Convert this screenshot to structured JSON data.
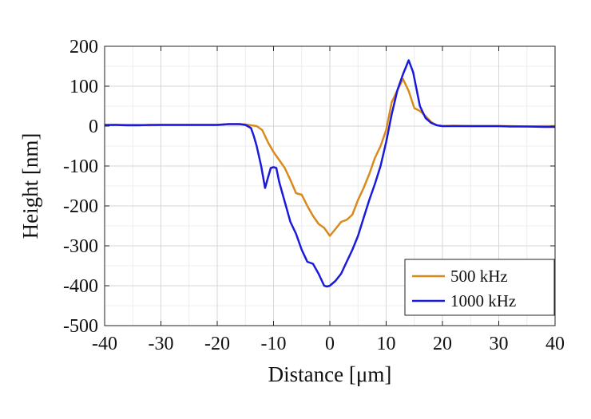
{
  "chart_data": {
    "type": "line",
    "title": "",
    "xlabel": "Distance [μm]",
    "ylabel": "Height [nm]",
    "xlim": [
      -40,
      40
    ],
    "ylim": [
      -500,
      200
    ],
    "xticks": [
      "-40",
      "-30",
      "-20",
      "-10",
      "0",
      "10",
      "20",
      "30",
      "40"
    ],
    "yticks": [
      "200",
      "100",
      "0",
      "-100",
      "-200",
      "-300",
      "-400",
      "-500"
    ],
    "grid": true,
    "minor_grid": true,
    "legend_position": "bottom-right",
    "series": [
      {
        "name": "500 kHz",
        "color": "#d98a1c",
        "x": [
          -40,
          -38,
          -36,
          -34,
          -32,
          -30,
          -28,
          -26,
          -24,
          -22,
          -20,
          -18,
          -17,
          -16,
          -15,
          -14,
          -13,
          -12,
          -11,
          -10,
          -9,
          -8,
          -7,
          -6,
          -5,
          -4,
          -3,
          -2,
          -1,
          0,
          1,
          2,
          3,
          4,
          5,
          6,
          7,
          8,
          9,
          10,
          11,
          12,
          13,
          14,
          15,
          16,
          17,
          18,
          19,
          20,
          22,
          25,
          28,
          30,
          32,
          35,
          38,
          40
        ],
        "y": [
          2,
          3,
          3,
          3,
          2,
          3,
          3,
          3,
          3,
          3,
          3,
          5,
          5,
          5,
          4,
          2,
          0,
          -10,
          -40,
          -65,
          -85,
          -105,
          -135,
          -168,
          -172,
          -200,
          -225,
          -245,
          -255,
          -275,
          -258,
          -240,
          -235,
          -222,
          -185,
          -155,
          -120,
          -80,
          -50,
          -10,
          60,
          90,
          118,
          88,
          45,
          38,
          25,
          10,
          2,
          0,
          1,
          0,
          0,
          0,
          0,
          -1,
          0,
          0
        ]
      },
      {
        "name": "1000 kHz",
        "color": "#1a1adb",
        "x": [
          -40,
          -38,
          -36,
          -34,
          -32,
          -30,
          -28,
          -26,
          -24,
          -22,
          -20,
          -19,
          -18,
          -17,
          -16,
          -15,
          -14,
          -13.5,
          -13,
          -12.2,
          -11.5,
          -11,
          -10.5,
          -10,
          -9.5,
          -9,
          -8,
          -7,
          -6,
          -5,
          -4,
          -3,
          -2,
          -1,
          -0.5,
          0,
          1,
          2,
          3,
          4,
          5,
          6,
          7,
          8,
          9,
          10,
          11,
          12,
          13,
          14,
          14.8,
          15.5,
          16,
          17,
          18,
          19,
          20,
          22,
          25,
          28,
          30,
          32,
          35,
          38,
          40
        ],
        "y": [
          3,
          3,
          2,
          2,
          3,
          3,
          3,
          3,
          3,
          3,
          3,
          4,
          5,
          5,
          5,
          3,
          -5,
          -25,
          -50,
          -100,
          -155,
          -130,
          -105,
          -103,
          -105,
          -140,
          -190,
          -240,
          -270,
          -310,
          -340,
          -345,
          -370,
          -400,
          -402,
          -400,
          -388,
          -370,
          -340,
          -310,
          -275,
          -230,
          -185,
          -145,
          -100,
          -40,
          30,
          90,
          130,
          165,
          135,
          85,
          50,
          20,
          8,
          2,
          0,
          0,
          0,
          0,
          0,
          -1,
          -1,
          -2,
          -2
        ]
      }
    ]
  }
}
